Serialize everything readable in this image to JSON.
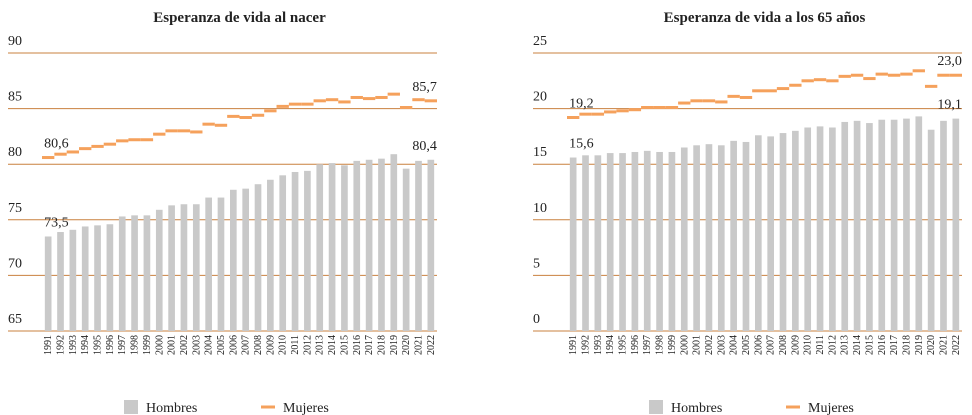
{
  "chart_data": [
    {
      "type": "bar_line",
      "title": "Esperanza de vida al nacer",
      "categories": [
        "1991",
        "1992",
        "1993",
        "1994",
        "1995",
        "1996",
        "1997",
        "1998",
        "1999",
        "2000",
        "2001",
        "2002",
        "2003",
        "2004",
        "2005",
        "2006",
        "2007",
        "2008",
        "2009",
        "2010",
        "2011",
        "2012",
        "2013",
        "2014",
        "2015",
        "2016",
        "2017",
        "2018",
        "2019",
        "2020",
        "2021",
        "2022"
      ],
      "ylim": [
        65,
        90
      ],
      "yticks": [
        65,
        70,
        75,
        80,
        85,
        90
      ],
      "grid": true,
      "series": [
        {
          "name": "Hombres",
          "color": "#c9c9c9",
          "mark": "bar",
          "values": [
            73.5,
            73.9,
            74.1,
            74.4,
            74.5,
            74.6,
            75.3,
            75.4,
            75.4,
            75.9,
            76.3,
            76.4,
            76.4,
            77.0,
            77.0,
            77.7,
            77.8,
            78.2,
            78.6,
            79.0,
            79.3,
            79.4,
            80.0,
            80.1,
            79.9,
            80.3,
            80.4,
            80.5,
            80.9,
            79.6,
            80.3,
            80.4
          ],
          "value_labels": [
            "73,5",
            null,
            null,
            null,
            null,
            null,
            null,
            null,
            null,
            null,
            null,
            null,
            null,
            null,
            null,
            null,
            null,
            null,
            null,
            null,
            null,
            null,
            null,
            null,
            null,
            null,
            null,
            null,
            null,
            null,
            null,
            "80,4"
          ]
        },
        {
          "name": "Mujeres",
          "color": "#f5a15c",
          "mark": "dash",
          "values": [
            80.6,
            80.9,
            81.1,
            81.4,
            81.6,
            81.8,
            82.1,
            82.2,
            82.2,
            82.7,
            83.0,
            83.0,
            82.9,
            83.6,
            83.5,
            84.3,
            84.2,
            84.4,
            84.8,
            85.2,
            85.4,
            85.4,
            85.7,
            85.8,
            85.6,
            86.0,
            85.9,
            86.0,
            86.3,
            85.1,
            85.8,
            85.7
          ],
          "value_labels": [
            "80,6",
            null,
            null,
            null,
            null,
            null,
            null,
            null,
            null,
            null,
            null,
            null,
            null,
            null,
            null,
            null,
            null,
            null,
            null,
            null,
            null,
            null,
            null,
            null,
            null,
            null,
            null,
            null,
            null,
            null,
            null,
            "85,7"
          ]
        }
      ]
    },
    {
      "type": "bar_line",
      "title": "Esperanza de vida a los 65 años",
      "categories": [
        "1991",
        "1992",
        "1993",
        "1994",
        "1995",
        "1996",
        "1997",
        "1998",
        "1999",
        "2000",
        "2001",
        "2002",
        "2003",
        "2004",
        "2005",
        "2006",
        "2007",
        "2008",
        "2009",
        "2010",
        "2011",
        "2012",
        "2013",
        "2014",
        "2015",
        "2016",
        "2017",
        "2018",
        "2019",
        "2020",
        "2021",
        "2022"
      ],
      "ylim": [
        0,
        25
      ],
      "yticks": [
        0,
        5,
        10,
        15,
        20,
        25
      ],
      "grid": true,
      "series": [
        {
          "name": "Hombres",
          "color": "#c9c9c9",
          "mark": "bar",
          "values": [
            15.6,
            15.8,
            15.8,
            16.0,
            16.0,
            16.1,
            16.2,
            16.1,
            16.1,
            16.5,
            16.7,
            16.8,
            16.7,
            17.1,
            17.0,
            17.6,
            17.5,
            17.8,
            18.0,
            18.3,
            18.4,
            18.3,
            18.8,
            18.9,
            18.7,
            19.0,
            19.0,
            19.1,
            19.3,
            18.1,
            18.9,
            19.1
          ],
          "value_labels": [
            "15,6",
            null,
            null,
            null,
            null,
            null,
            null,
            null,
            null,
            null,
            null,
            null,
            null,
            null,
            null,
            null,
            null,
            null,
            null,
            null,
            null,
            null,
            null,
            null,
            null,
            null,
            null,
            null,
            null,
            null,
            null,
            "19,1"
          ]
        },
        {
          "name": "Mujeres",
          "color": "#f5a15c",
          "mark": "dash",
          "values": [
            19.2,
            19.5,
            19.5,
            19.7,
            19.8,
            19.9,
            20.1,
            20.1,
            20.1,
            20.5,
            20.7,
            20.7,
            20.6,
            21.1,
            21.0,
            21.6,
            21.6,
            21.8,
            22.1,
            22.5,
            22.6,
            22.5,
            22.9,
            23.0,
            22.7,
            23.1,
            23.0,
            23.1,
            23.4,
            22.0,
            23.0,
            23.0
          ],
          "value_labels": [
            "19,2",
            null,
            null,
            null,
            null,
            null,
            null,
            null,
            null,
            null,
            null,
            null,
            null,
            null,
            null,
            null,
            null,
            null,
            null,
            null,
            null,
            null,
            null,
            null,
            null,
            null,
            null,
            null,
            null,
            null,
            null,
            "23,0"
          ]
        }
      ]
    }
  ]
}
